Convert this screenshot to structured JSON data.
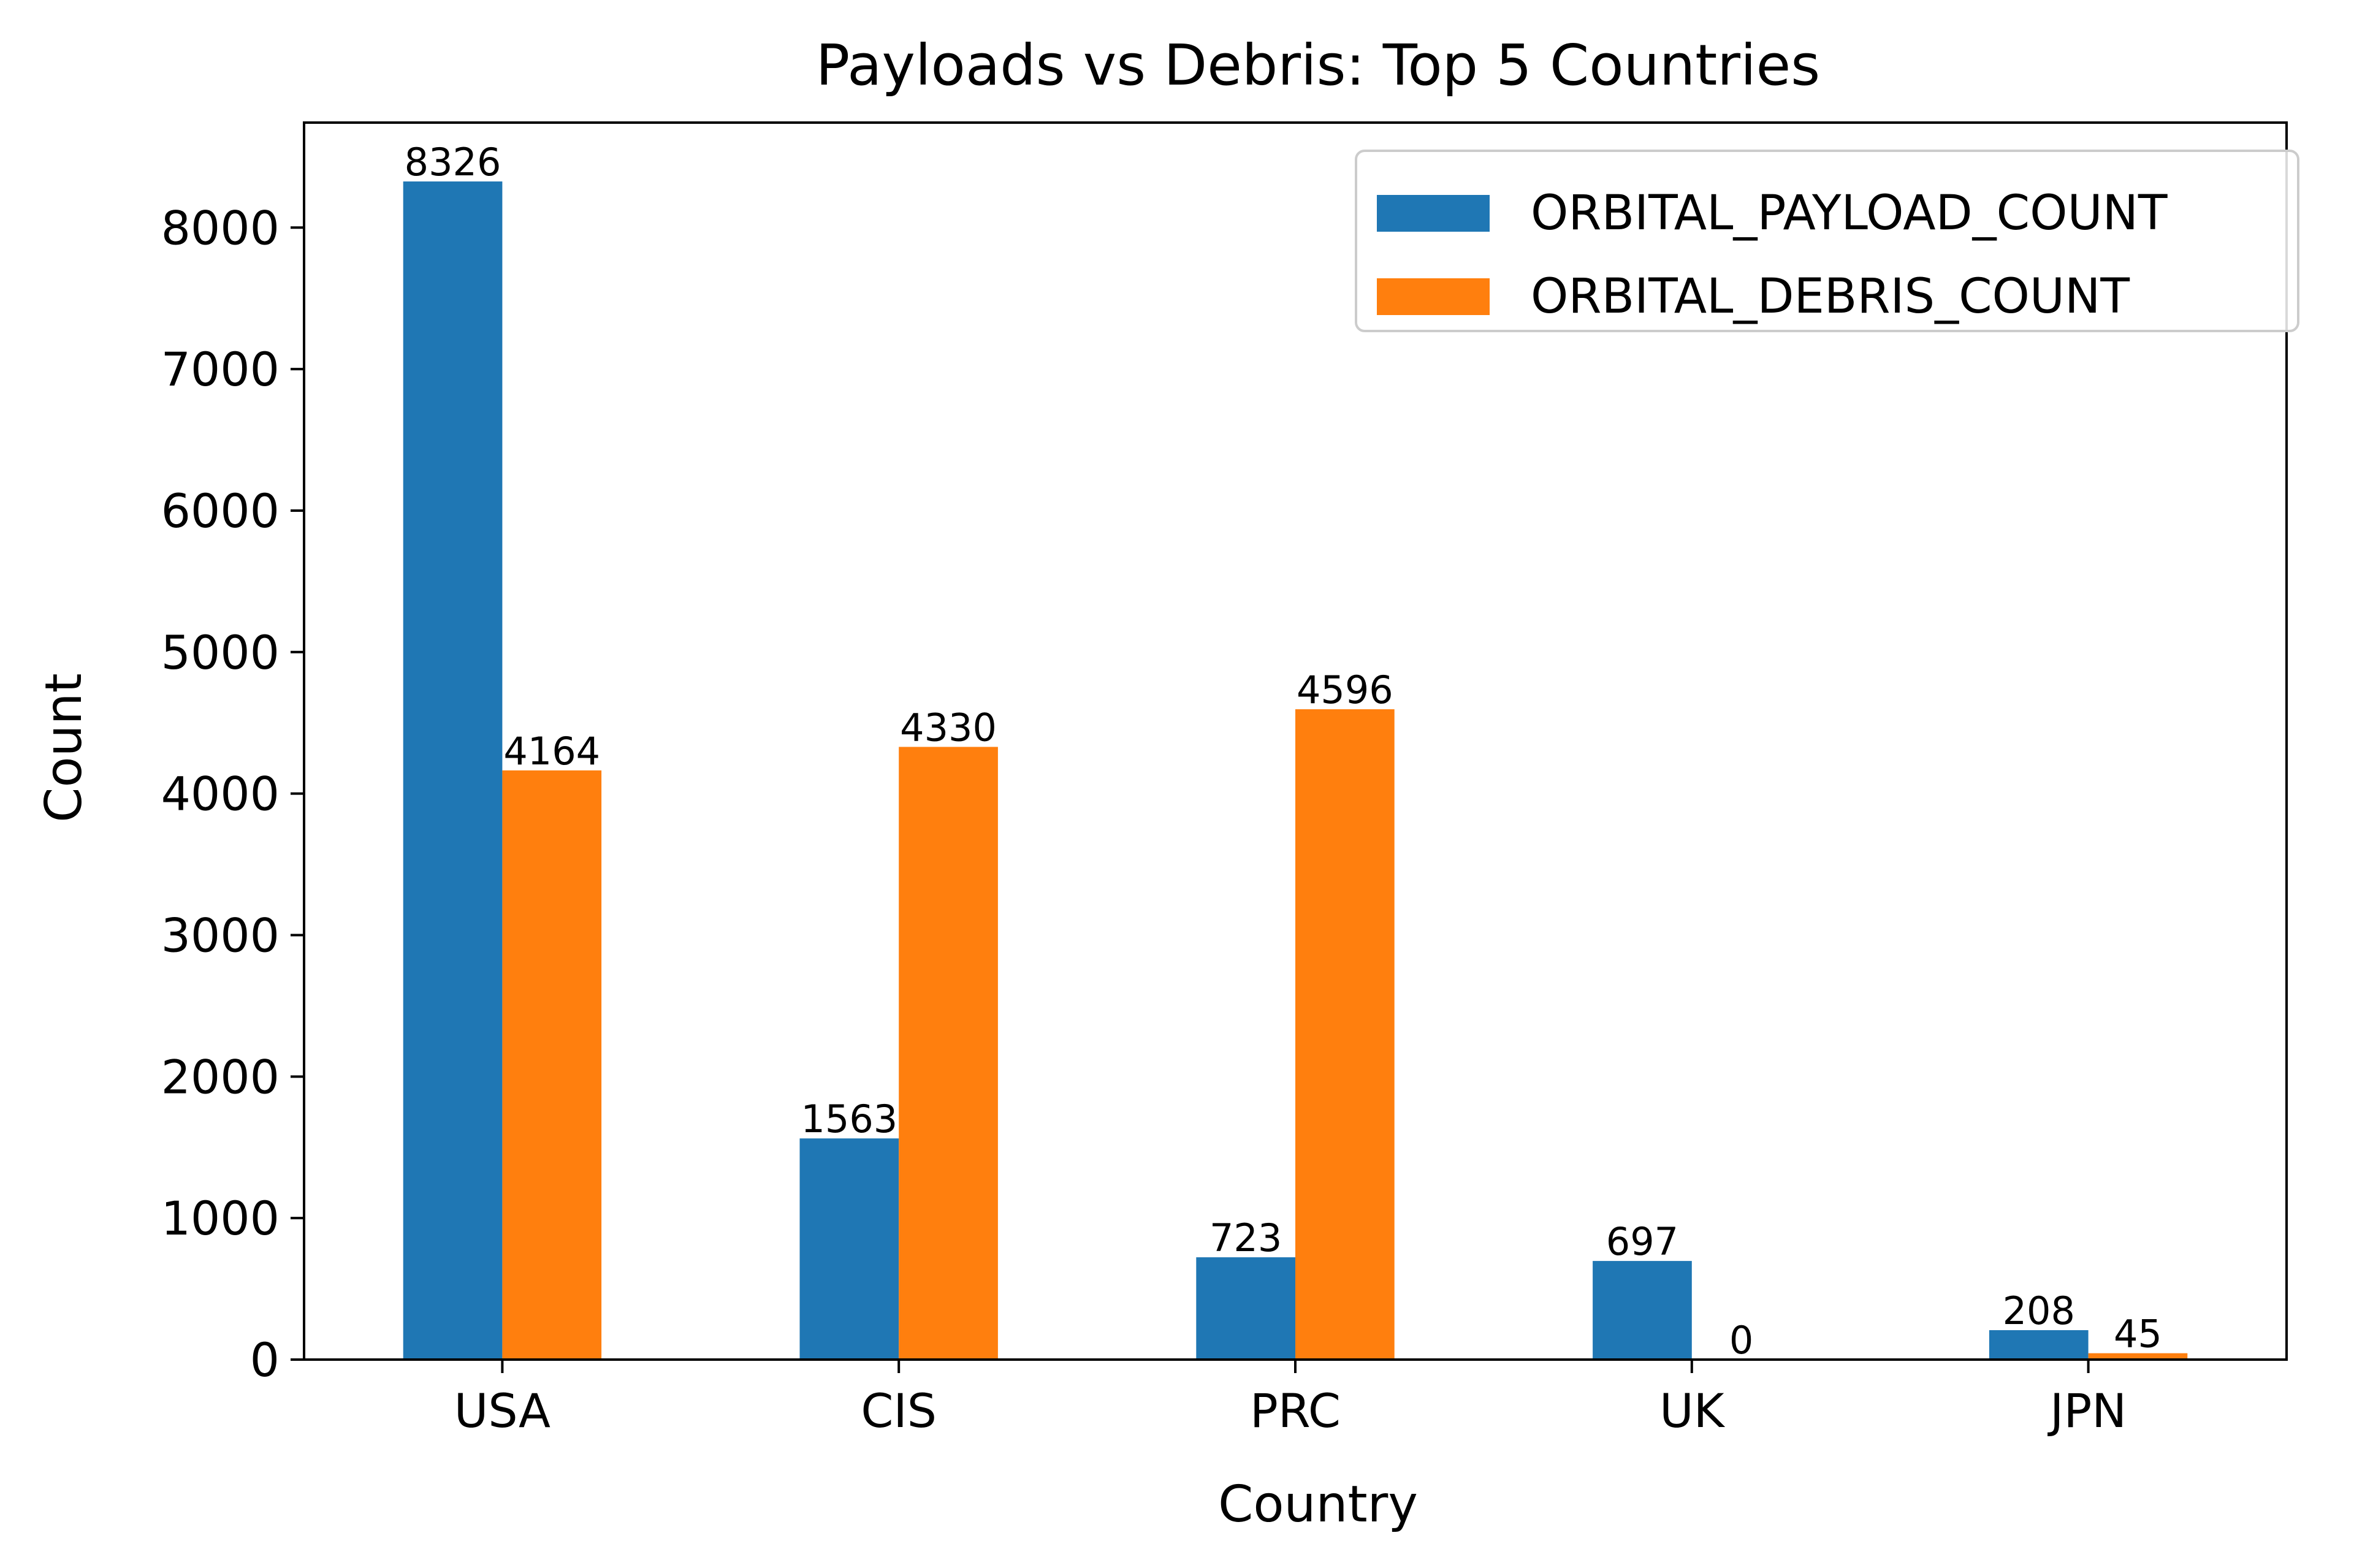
{
  "chart_data": {
    "type": "bar",
    "title": "Payloads vs Debris: Top 5 Countries",
    "xlabel": "Country",
    "ylabel": "Count",
    "categories": [
      "USA",
      "CIS",
      "PRC",
      "UK",
      "JPN"
    ],
    "series": [
      {
        "name": "ORBITAL_PAYLOAD_COUNT",
        "values": [
          8326,
          1563,
          723,
          697,
          208
        ],
        "color": "#1f77b4"
      },
      {
        "name": "ORBITAL_DEBRIS_COUNT",
        "values": [
          4164,
          4330,
          4596,
          0,
          45
        ],
        "color": "#ff7f0e"
      }
    ],
    "ylim": [
      0,
      8742
    ],
    "yticks": [
      0,
      1000,
      2000,
      3000,
      4000,
      5000,
      6000,
      7000,
      8000
    ],
    "grid": false,
    "legend": "top-right",
    "data_labels": true
  }
}
